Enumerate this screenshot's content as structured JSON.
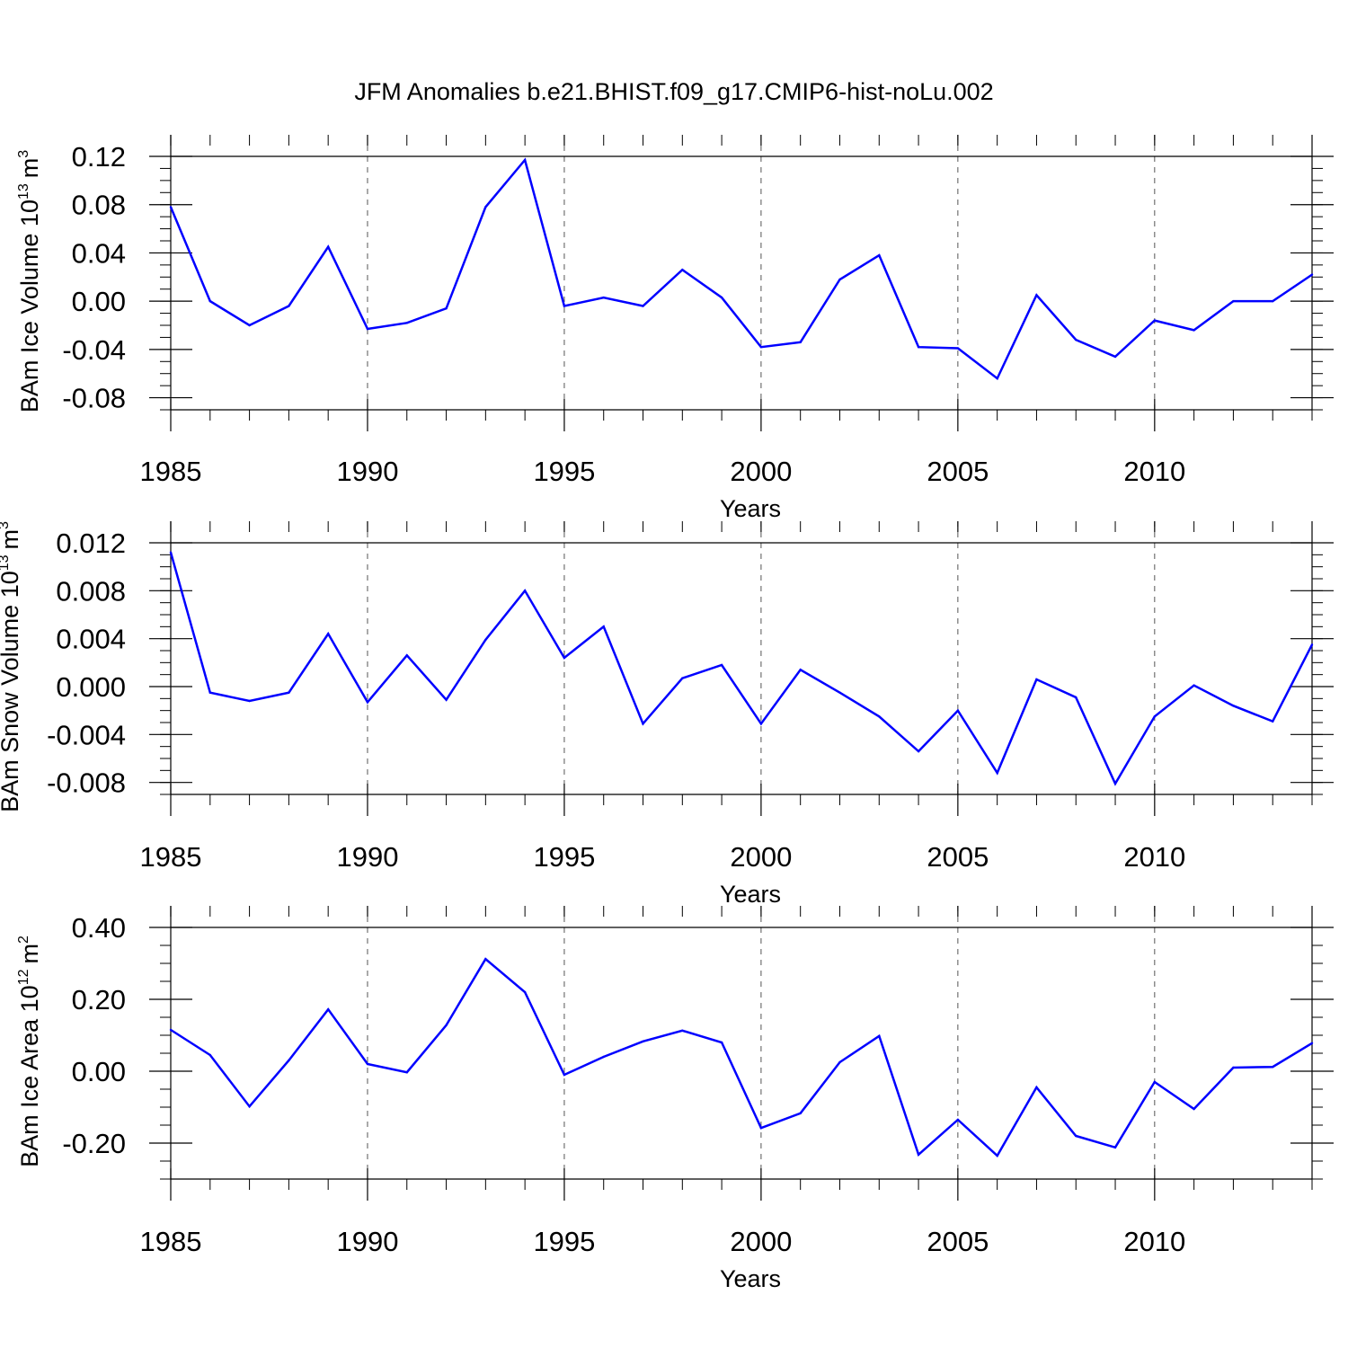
{
  "figure_title": "JFM Anomalies b.e21.BHIST.f09_g17.CMIP6-hist-noLu.002",
  "colors": {
    "line": "#0000ff",
    "axis": "#000000",
    "grid": "#555555"
  },
  "chart_data": [
    {
      "type": "line",
      "title": "JFM Anomalies b.e21.BHIST.f09_g17.CMIP6-hist-noLu.002",
      "xlabel": "Years",
      "ylabel": {
        "text": "BAm Ice Volume 10",
        "exponent": "13",
        "unit": "m",
        "unit_exponent": "3"
      },
      "xlim": [
        1985,
        2014
      ],
      "ylim": [
        -0.09,
        0.12
      ],
      "yticks": [
        0.12,
        0.08,
        0.04,
        0.0,
        -0.04,
        -0.08
      ],
      "ytick_labels": [
        "0.12",
        "0.08",
        "0.04",
        "0.00",
        "-0.04",
        "-0.08"
      ],
      "yminor_step": 0.01,
      "xticks": [
        1985,
        1990,
        1995,
        2000,
        2005,
        2010
      ],
      "xtick_labels": [
        "1985",
        "1990",
        "1995",
        "2000",
        "2005",
        "2010"
      ],
      "x": [
        1985,
        1986,
        1987,
        1988,
        1989,
        1990,
        1991,
        1992,
        1993,
        1994,
        1995,
        1996,
        1997,
        1998,
        1999,
        2000,
        2001,
        2002,
        2003,
        2004,
        2005,
        2006,
        2007,
        2008,
        2009,
        2010,
        2011,
        2012,
        2013,
        2014
      ],
      "values": [
        0.078,
        0.0,
        -0.02,
        -0.004,
        0.045,
        -0.023,
        -0.018,
        -0.006,
        0.078,
        0.117,
        -0.004,
        0.003,
        -0.004,
        0.026,
        0.003,
        -0.038,
        -0.034,
        0.018,
        0.038,
        -0.038,
        -0.039,
        -0.064,
        0.005,
        -0.032,
        -0.046,
        -0.016,
        -0.024,
        0.0,
        0.0,
        0.022
      ]
    },
    {
      "type": "line",
      "xlabel": "Years",
      "ylabel": {
        "text": "BAm Snow Volume 10",
        "exponent": "13",
        "unit": "m",
        "unit_exponent": "3"
      },
      "xlim": [
        1985,
        2014
      ],
      "ylim": [
        -0.009,
        0.012
      ],
      "yticks": [
        0.012,
        0.008,
        0.004,
        0.0,
        -0.004,
        -0.008
      ],
      "ytick_labels": [
        "0.012",
        "0.008",
        "0.004",
        "0.000",
        "-0.004",
        "-0.008"
      ],
      "yminor_step": 0.001,
      "xticks": [
        1985,
        1990,
        1995,
        2000,
        2005,
        2010
      ],
      "xtick_labels": [
        "1985",
        "1990",
        "1995",
        "2000",
        "2005",
        "2010"
      ],
      "x": [
        1985,
        1986,
        1987,
        1988,
        1989,
        1990,
        1991,
        1992,
        1993,
        1994,
        1995,
        1996,
        1997,
        1998,
        1999,
        2000,
        2001,
        2002,
        2003,
        2004,
        2005,
        2006,
        2007,
        2008,
        2009,
        2010,
        2011,
        2012,
        2013,
        2014
      ],
      "values": [
        0.0112,
        -0.0005,
        -0.0012,
        -0.0005,
        0.0044,
        -0.0013,
        0.0026,
        -0.0011,
        0.0039,
        0.008,
        0.0024,
        0.005,
        -0.0031,
        0.0007,
        0.0018,
        -0.0031,
        0.0014,
        -0.0005,
        -0.0025,
        -0.0054,
        -0.002,
        -0.0072,
        0.0006,
        -0.0009,
        -0.0081,
        -0.0025,
        0.0001,
        -0.0016,
        -0.0029,
        0.0035
      ]
    },
    {
      "type": "line",
      "xlabel": "Years",
      "ylabel": {
        "text": "BAm Ice Area 10",
        "exponent": "12",
        "unit": "m",
        "unit_exponent": "2"
      },
      "xlim": [
        1985,
        2014
      ],
      "ylim": [
        -0.3,
        0.4
      ],
      "yticks": [
        0.4,
        0.2,
        0.0,
        -0.2
      ],
      "ytick_labels": [
        "0.40",
        "0.20",
        "0.00",
        "-0.20"
      ],
      "yminor_step": 0.05,
      "xticks": [
        1985,
        1990,
        1995,
        2000,
        2005,
        2010
      ],
      "xtick_labels": [
        "1985",
        "1990",
        "1995",
        "2000",
        "2005",
        "2010"
      ],
      "x": [
        1985,
        1986,
        1987,
        1988,
        1989,
        1990,
        1991,
        1992,
        1993,
        1994,
        1995,
        1996,
        1997,
        1998,
        1999,
        2000,
        2001,
        2002,
        2003,
        2004,
        2005,
        2006,
        2007,
        2008,
        2009,
        2010,
        2011,
        2012,
        2013,
        2014
      ],
      "values": [
        0.115,
        0.045,
        -0.098,
        0.03,
        0.172,
        0.02,
        -0.003,
        0.128,
        0.312,
        0.22,
        -0.01,
        0.04,
        0.083,
        0.113,
        0.08,
        -0.158,
        -0.117,
        0.025,
        0.098,
        -0.232,
        -0.135,
        -0.235,
        -0.045,
        -0.18,
        -0.212,
        -0.03,
        -0.105,
        0.01,
        0.012,
        0.078
      ]
    }
  ]
}
